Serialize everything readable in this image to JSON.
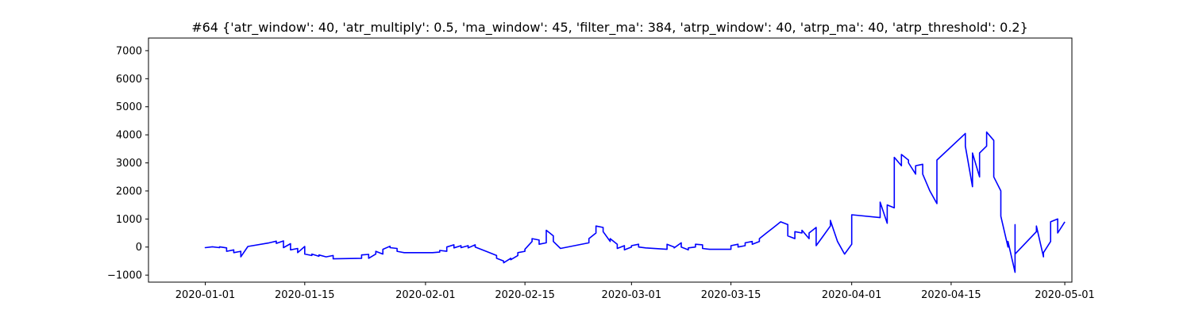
{
  "chart_data": {
    "type": "line",
    "title": "#64 {'atr_window': 40, 'atr_multiply': 0.5, 'ma_window': 45, 'filter_ma': 384, 'atrp_window': 40, 'atrp_ma': 40, 'atrp_threshold': 0.2}",
    "xlabel": "",
    "ylabel": "",
    "x_axis_type": "date",
    "xlim": [
      "2019-12-24",
      "2020-05-02"
    ],
    "ylim": [
      -1250,
      7450
    ],
    "grid": false,
    "legend": "none",
    "x_ticks": [
      "2020-01-01",
      "2020-01-15",
      "2020-02-01",
      "2020-02-15",
      "2020-03-01",
      "2020-03-15",
      "2020-04-01",
      "2020-04-15",
      "2020-05-01"
    ],
    "y_ticks": [
      -1000,
      0,
      1000,
      2000,
      3000,
      4000,
      5000,
      6000,
      7000
    ],
    "series": [
      {
        "color": "#0000ff",
        "points": [
          [
            "2020-01-01",
            0
          ],
          [
            "2020-01-01",
            -20
          ],
          [
            "2020-01-02",
            10
          ],
          [
            "2020-01-03",
            -20
          ],
          [
            "2020-01-03",
            10
          ],
          [
            "2020-01-04",
            -30
          ],
          [
            "2020-01-04",
            -150
          ],
          [
            "2020-01-05",
            -100
          ],
          [
            "2020-01-05",
            -200
          ],
          [
            "2020-01-06",
            -150
          ],
          [
            "2020-01-06",
            -350
          ],
          [
            "2020-01-07",
            20
          ],
          [
            "2020-01-10",
            150
          ],
          [
            "2020-01-11",
            210
          ],
          [
            "2020-01-11",
            130
          ],
          [
            "2020-01-12",
            220
          ],
          [
            "2020-01-12",
            -20
          ],
          [
            "2020-01-13",
            120
          ],
          [
            "2020-01-13",
            -100
          ],
          [
            "2020-01-14",
            -50
          ],
          [
            "2020-01-14",
            -200
          ],
          [
            "2020-01-15",
            20
          ],
          [
            "2020-01-15",
            -250
          ],
          [
            "2020-01-16",
            -300
          ],
          [
            "2020-01-16",
            -250
          ],
          [
            "2020-01-17",
            -330
          ],
          [
            "2020-01-17",
            -280
          ],
          [
            "2020-01-18",
            -350
          ],
          [
            "2020-01-19",
            -300
          ],
          [
            "2020-01-19",
            -420
          ],
          [
            "2020-01-23",
            -400
          ],
          [
            "2020-01-23",
            -280
          ],
          [
            "2020-01-24",
            -260
          ],
          [
            "2020-01-24",
            -400
          ],
          [
            "2020-01-25",
            -250
          ],
          [
            "2020-01-25",
            -150
          ],
          [
            "2020-01-26",
            -250
          ],
          [
            "2020-01-26",
            -80
          ],
          [
            "2020-01-27",
            30
          ],
          [
            "2020-01-27",
            -20
          ],
          [
            "2020-01-28",
            -50
          ],
          [
            "2020-01-28",
            -150
          ],
          [
            "2020-01-29",
            -200
          ],
          [
            "2020-02-02",
            -200
          ],
          [
            "2020-02-03",
            -180
          ],
          [
            "2020-02-03",
            -120
          ],
          [
            "2020-02-04",
            -150
          ],
          [
            "2020-02-04",
            0
          ],
          [
            "2020-02-05",
            80
          ],
          [
            "2020-02-05",
            -30
          ],
          [
            "2020-02-06",
            50
          ],
          [
            "2020-02-06",
            -20
          ],
          [
            "2020-02-07",
            50
          ],
          [
            "2020-02-07",
            -30
          ],
          [
            "2020-02-08",
            80
          ],
          [
            "2020-02-08",
            0
          ],
          [
            "2020-02-09",
            -100
          ],
          [
            "2020-02-10",
            -200
          ],
          [
            "2020-02-11",
            -300
          ],
          [
            "2020-02-11",
            -400
          ],
          [
            "2020-02-12",
            -500
          ],
          [
            "2020-02-12",
            -560
          ],
          [
            "2020-02-13",
            -400
          ],
          [
            "2020-02-13",
            -450
          ],
          [
            "2020-02-14",
            -300
          ],
          [
            "2020-02-14",
            -200
          ],
          [
            "2020-02-15",
            -150
          ],
          [
            "2020-02-15",
            -80
          ],
          [
            "2020-02-16",
            200
          ],
          [
            "2020-02-16",
            300
          ],
          [
            "2020-02-17",
            250
          ],
          [
            "2020-02-17",
            100
          ],
          [
            "2020-02-18",
            150
          ],
          [
            "2020-02-18",
            600
          ],
          [
            "2020-02-19",
            400
          ],
          [
            "2020-02-19",
            200
          ],
          [
            "2020-02-20",
            -50
          ],
          [
            "2020-02-24",
            150
          ],
          [
            "2020-02-24",
            300
          ],
          [
            "2020-02-25",
            500
          ],
          [
            "2020-02-25",
            750
          ],
          [
            "2020-02-26",
            700
          ],
          [
            "2020-02-26",
            550
          ],
          [
            "2020-02-27",
            200
          ],
          [
            "2020-02-27",
            300
          ],
          [
            "2020-02-28",
            100
          ],
          [
            "2020-02-28",
            -50
          ],
          [
            "2020-02-29",
            50
          ],
          [
            "2020-02-29",
            -100
          ],
          [
            "2020-03-01",
            0
          ],
          [
            "2020-03-01",
            50
          ],
          [
            "2020-03-02",
            100
          ],
          [
            "2020-03-02",
            0
          ],
          [
            "2020-03-03",
            -30
          ],
          [
            "2020-03-06",
            -80
          ],
          [
            "2020-03-06",
            100
          ],
          [
            "2020-03-07",
            0
          ],
          [
            "2020-03-07",
            -30
          ],
          [
            "2020-03-08",
            150
          ],
          [
            "2020-03-08",
            0
          ],
          [
            "2020-03-09",
            -100
          ],
          [
            "2020-03-09",
            -30
          ],
          [
            "2020-03-10",
            0
          ],
          [
            "2020-03-10",
            100
          ],
          [
            "2020-03-11",
            80
          ],
          [
            "2020-03-11",
            -50
          ],
          [
            "2020-03-12",
            -80
          ],
          [
            "2020-03-15",
            -80
          ],
          [
            "2020-03-15",
            50
          ],
          [
            "2020-03-16",
            100
          ],
          [
            "2020-03-16",
            0
          ],
          [
            "2020-03-17",
            50
          ],
          [
            "2020-03-17",
            150
          ],
          [
            "2020-03-18",
            200
          ],
          [
            "2020-03-18",
            100
          ],
          [
            "2020-03-19",
            200
          ],
          [
            "2020-03-19",
            300
          ],
          [
            "2020-03-20",
            500
          ],
          [
            "2020-03-21",
            700
          ],
          [
            "2020-03-22",
            900
          ],
          [
            "2020-03-23",
            800
          ],
          [
            "2020-03-23",
            400
          ],
          [
            "2020-03-24",
            300
          ],
          [
            "2020-03-24",
            550
          ],
          [
            "2020-03-25",
            500
          ],
          [
            "2020-03-25",
            600
          ],
          [
            "2020-03-26",
            300
          ],
          [
            "2020-03-26",
            500
          ],
          [
            "2020-03-27",
            700
          ],
          [
            "2020-03-27",
            50
          ],
          [
            "2020-03-28",
            400
          ],
          [
            "2020-03-29",
            750
          ],
          [
            "2020-03-29",
            950
          ],
          [
            "2020-03-30",
            200
          ],
          [
            "2020-03-31",
            -250
          ],
          [
            "2020-04-01",
            100
          ],
          [
            "2020-04-01",
            1150
          ],
          [
            "2020-04-05",
            1050
          ],
          [
            "2020-04-05",
            1600
          ],
          [
            "2020-04-06",
            850
          ],
          [
            "2020-04-06",
            1500
          ],
          [
            "2020-04-07",
            1400
          ],
          [
            "2020-04-07",
            3200
          ],
          [
            "2020-04-08",
            2900
          ],
          [
            "2020-04-08",
            3300
          ],
          [
            "2020-04-09",
            3100
          ],
          [
            "2020-04-09",
            3000
          ],
          [
            "2020-04-10",
            2600
          ],
          [
            "2020-04-10",
            2900
          ],
          [
            "2020-04-11",
            2950
          ],
          [
            "2020-04-11",
            2600
          ],
          [
            "2020-04-12",
            2000
          ],
          [
            "2020-04-13",
            1550
          ],
          [
            "2020-04-13",
            3100
          ],
          [
            "2020-04-17",
            4050
          ],
          [
            "2020-04-17",
            3600
          ],
          [
            "2020-04-18",
            2150
          ],
          [
            "2020-04-18",
            3350
          ],
          [
            "2020-04-19",
            2500
          ],
          [
            "2020-04-19",
            3350
          ],
          [
            "2020-04-20",
            3600
          ],
          [
            "2020-04-20",
            4100
          ],
          [
            "2020-04-21",
            3800
          ],
          [
            "2020-04-21",
            2500
          ],
          [
            "2020-04-22",
            2000
          ],
          [
            "2020-04-22",
            1100
          ],
          [
            "2020-04-23",
            0
          ],
          [
            "2020-04-23",
            200
          ],
          [
            "2020-04-24",
            -900
          ],
          [
            "2020-04-24",
            800
          ],
          [
            "2020-04-24",
            -250
          ],
          [
            "2020-04-27",
            550
          ],
          [
            "2020-04-27",
            750
          ],
          [
            "2020-04-28",
            -350
          ],
          [
            "2020-04-28",
            -200
          ],
          [
            "2020-04-29",
            200
          ],
          [
            "2020-04-29",
            900
          ],
          [
            "2020-04-30",
            1000
          ],
          [
            "2020-04-30",
            500
          ],
          [
            "2020-05-01",
            900
          ]
        ]
      }
    ]
  }
}
